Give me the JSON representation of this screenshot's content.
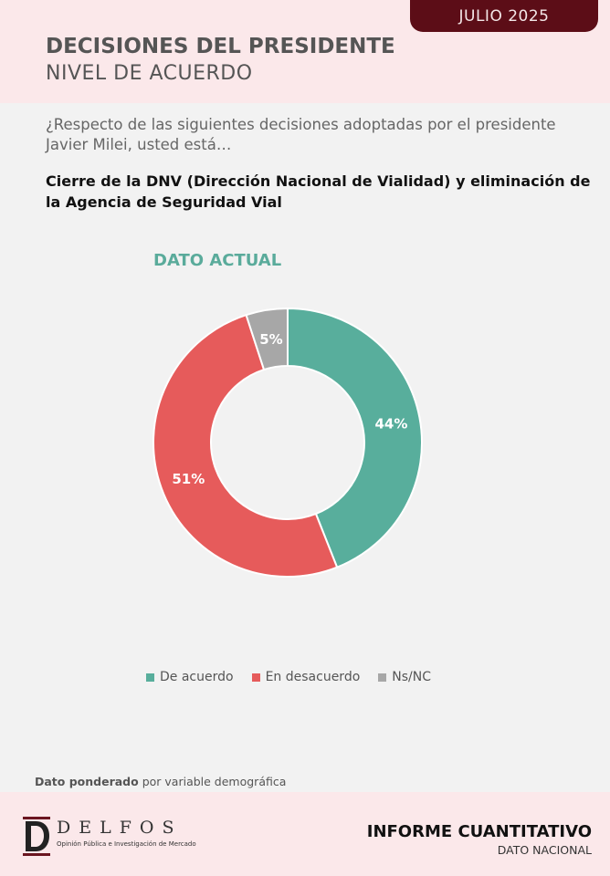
{
  "header": {
    "date": "JULIO 2025",
    "title": "DECISIONES DEL PRESIDENTE",
    "subtitle": "NIVEL DE ACUERDO"
  },
  "question": "¿Respecto de las siguientes decisiones adoptadas por el presidente Javier Milei, usted está…",
  "topic": "Cierre de la DNV (Dirección Nacional de Vialidad) y eliminación de la Agencia de Seguridad Vial",
  "chart_data": {
    "type": "pie",
    "title": "DATO ACTUAL",
    "categories": [
      "De acuerdo",
      "En desacuerdo",
      "Ns/NC"
    ],
    "values": [
      44,
      51,
      5
    ],
    "labels": [
      "44%",
      "51%",
      "5%"
    ],
    "colors": [
      "#58ae9c",
      "#e65b5b",
      "#a7a7a7"
    ],
    "legend": "bottom"
  },
  "footnote": {
    "bold": "Dato ponderado",
    "rest": " por variable demográfica"
  },
  "footer": {
    "logo_name": "DELFOS",
    "logo_tagline": "Opinión Pública e Investigación de Mercado",
    "report_title": "INFORME CUANTITATIVO",
    "report_sub": "DATO NACIONAL"
  }
}
